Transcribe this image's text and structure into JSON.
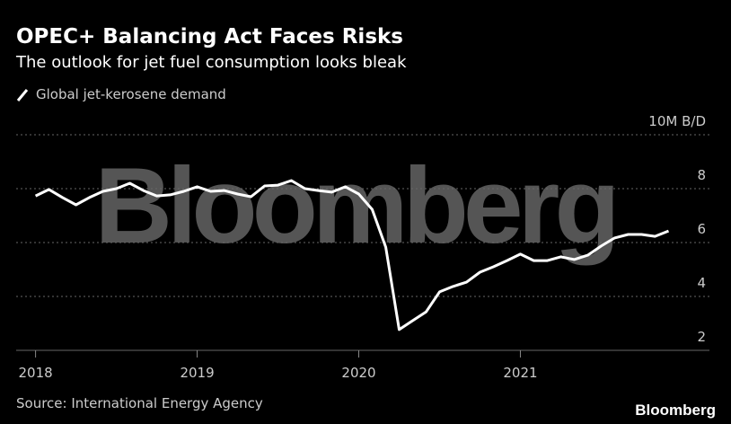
{
  "chart_data": {
    "type": "line",
    "title": "OPEC+ Balancing Act Faces Risks",
    "subtitle": "The outlook for jet fuel consumption looks bleak",
    "source": "Source: International Energy Agency",
    "watermark": "Bloomberg",
    "logo": "Bloomberg",
    "x": [
      2018,
      2018.083,
      2018.167,
      2018.25,
      2018.333,
      2018.417,
      2018.5,
      2018.583,
      2018.667,
      2018.75,
      2018.833,
      2018.917,
      2019,
      2019.083,
      2019.167,
      2019.25,
      2019.333,
      2019.417,
      2019.5,
      2019.583,
      2019.667,
      2019.75,
      2019.833,
      2019.917,
      2020,
      2020.083,
      2020.167,
      2020.25,
      2020.333,
      2020.417,
      2020.5,
      2020.583,
      2020.667,
      2020.75,
      2020.833,
      2020.917,
      2021,
      2021.083,
      2021.167,
      2021.25,
      2021.333,
      2021.417,
      2021.5,
      2021.583,
      2021.667,
      2021.75,
      2021.833,
      2021.917
    ],
    "series": [
      {
        "name": "Global jet-kerosene demand",
        "color": "#ffffff",
        "values": [
          7.73,
          7.97,
          7.67,
          7.4,
          7.67,
          7.9,
          8.0,
          8.2,
          7.93,
          7.73,
          7.77,
          7.9,
          8.07,
          7.9,
          7.93,
          7.8,
          7.7,
          8.1,
          8.13,
          8.3,
          8.0,
          7.93,
          7.87,
          8.07,
          7.8,
          7.23,
          5.83,
          2.77,
          3.1,
          3.43,
          4.17,
          4.37,
          4.53,
          4.9,
          5.1,
          5.33,
          5.57,
          5.33,
          5.33,
          5.47,
          5.37,
          5.53,
          5.87,
          6.17,
          6.3,
          6.3,
          6.23,
          6.43
        ]
      }
    ],
    "xlim": [
      2017.88,
      2022.17
    ],
    "xticks": [
      2018,
      2019,
      2020,
      2021
    ],
    "ylim": [
      2,
      10
    ],
    "yticks": [
      2,
      4,
      6,
      8,
      {
        "value": 10,
        "label": "10M B/D"
      }
    ],
    "grid": true
  }
}
